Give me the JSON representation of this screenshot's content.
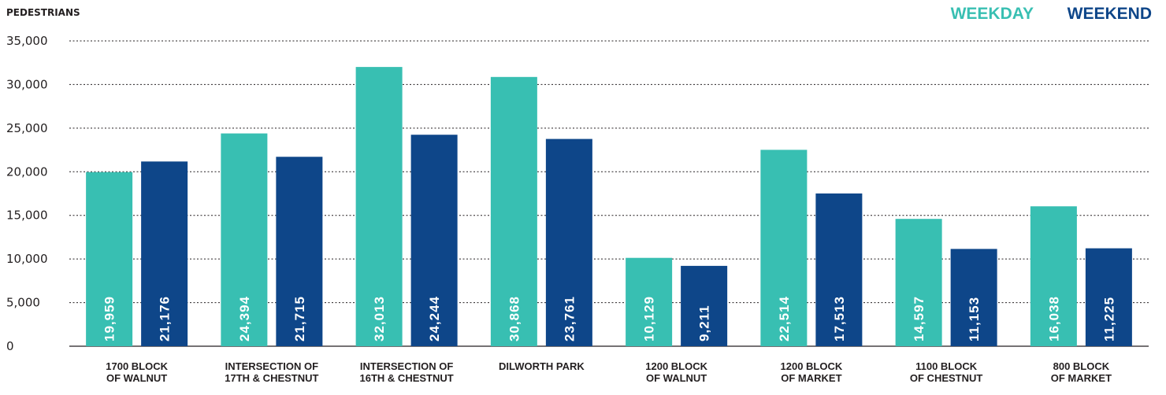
{
  "chart_data": {
    "type": "bar",
    "ylabel": "PEDESTRIANS",
    "ylim": [
      0,
      35000
    ],
    "yticks": [
      0,
      5000,
      10000,
      15000,
      20000,
      25000,
      30000,
      35000
    ],
    "ytick_labels": [
      "0",
      "5,000",
      "10,000",
      "15,000",
      "20,000",
      "25,000",
      "30,000",
      "35,000"
    ],
    "grid": "horizontal-dotted",
    "legend_position": "top-right",
    "categories": [
      [
        "1700 BLOCK",
        "OF WALNUT"
      ],
      [
        "INTERSECTION OF",
        "17TH & CHESTNUT"
      ],
      [
        "INTERSECTION OF",
        "16TH & CHESTNUT"
      ],
      [
        "DILWORTH PARK"
      ],
      [
        "1200 BLOCK",
        "OF WALNUT"
      ],
      [
        "1200 BLOCK",
        "OF MARKET"
      ],
      [
        "1100 BLOCK",
        "OF CHESTNUT"
      ],
      [
        "800 BLOCK",
        "OF MARKET"
      ]
    ],
    "series": [
      {
        "name": "WEEKDAY",
        "color": "#38bfb2",
        "values": [
          19959,
          24394,
          32013,
          30868,
          10129,
          22514,
          14597,
          16038
        ],
        "labels": [
          "19,959",
          "24,394",
          "32,013",
          "30,868",
          "10,129",
          "22,514",
          "14,597",
          "16,038"
        ]
      },
      {
        "name": "WEEKEND",
        "color": "#0e4689",
        "values": [
          21176,
          21715,
          24244,
          23761,
          9211,
          17513,
          11153,
          11225
        ],
        "labels": [
          "21,176",
          "21,715",
          "24,244",
          "23,761",
          "9,211",
          "17,513",
          "11,153",
          "11,225"
        ]
      }
    ]
  }
}
